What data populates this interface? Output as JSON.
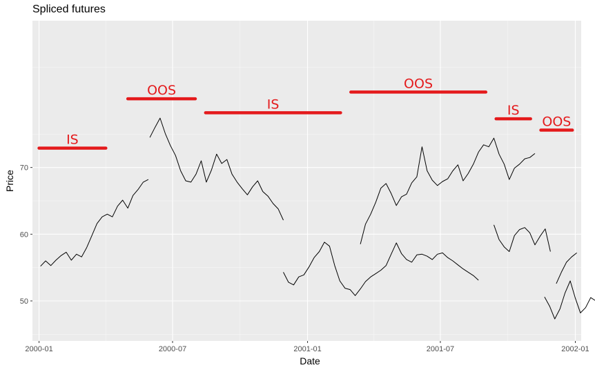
{
  "chart_data": {
    "type": "line",
    "title": "Spliced futures",
    "xlabel": "Date",
    "ylabel": "Price",
    "xlim": [
      "1999-12-23",
      "2002-01-09"
    ],
    "ylim": [
      44,
      92
    ],
    "x_ticks": [
      "2000-01",
      "2000-07",
      "2001-01",
      "2001-07",
      "2002-01"
    ],
    "y_ticks": [
      50,
      60,
      70
    ],
    "grid": true,
    "background": "#ebebeb",
    "line_color": "#000000",
    "annotation_color": "#e41a1c",
    "segments": [
      {
        "x": [
          "2000-01-03",
          "2000-01-10",
          "2000-01-17",
          "2000-01-24",
          "2000-01-31",
          "2000-02-07",
          "2000-02-14",
          "2000-02-21",
          "2000-02-28",
          "2000-03-06",
          "2000-03-13",
          "2000-03-20",
          "2000-03-27",
          "2000-04-03",
          "2000-04-10",
          "2000-04-17",
          "2000-04-24",
          "2000-05-01",
          "2000-05-08",
          "2000-05-15",
          "2000-05-22",
          "2000-05-29"
        ],
        "y": [
          55.2,
          56.0,
          55.3,
          56.1,
          56.8,
          57.3,
          56.1,
          57.0,
          56.6,
          58.0,
          59.8,
          61.6,
          62.6,
          63.0,
          62.6,
          64.2,
          65.1,
          63.9,
          65.8,
          66.7,
          67.8,
          68.2
        ]
      },
      {
        "x": [
          "2000-05-31",
          "2000-06-07",
          "2000-06-14",
          "2000-06-21",
          "2000-06-28",
          "2000-07-05",
          "2000-07-12",
          "2000-07-19",
          "2000-07-26",
          "2000-08-02",
          "2000-08-09",
          "2000-08-16",
          "2000-08-23",
          "2000-08-30",
          "2000-09-06",
          "2000-09-13",
          "2000-09-20",
          "2000-09-27",
          "2000-10-04",
          "2000-10-11",
          "2000-10-18",
          "2000-10-25",
          "2000-11-01",
          "2000-11-08",
          "2000-11-15",
          "2000-11-22",
          "2000-11-29"
        ],
        "y": [
          74.5,
          76.0,
          77.4,
          75.1,
          73.3,
          71.8,
          69.5,
          68.0,
          67.8,
          69.0,
          71.0,
          67.8,
          69.6,
          72.0,
          70.6,
          71.2,
          69.0,
          67.8,
          66.8,
          65.9,
          67.1,
          68.0,
          66.4,
          65.7,
          64.6,
          63.8,
          62.1
        ]
      },
      {
        "x": [
          "2000-11-29",
          "2000-12-06",
          "2000-12-13",
          "2000-12-20",
          "2000-12-27",
          "2001-01-03",
          "2001-01-10",
          "2001-01-17",
          "2001-01-24",
          "2001-01-31",
          "2001-02-07",
          "2001-02-14",
          "2001-02-21",
          "2001-02-28",
          "2001-03-07",
          "2001-03-14",
          "2001-03-21",
          "2001-03-28",
          "2001-04-04",
          "2001-04-11",
          "2001-04-18",
          "2001-04-25",
          "2001-05-02",
          "2001-05-09",
          "2001-05-16",
          "2001-05-23",
          "2001-05-30",
          "2001-06-06",
          "2001-06-13",
          "2001-06-20",
          "2001-06-27",
          "2001-07-04",
          "2001-07-11",
          "2001-07-18",
          "2001-07-25",
          "2001-08-01",
          "2001-08-08",
          "2001-08-15",
          "2001-08-22"
        ],
        "y": [
          54.3,
          52.8,
          52.4,
          53.6,
          53.9,
          55.1,
          56.5,
          57.4,
          58.8,
          58.2,
          55.3,
          53.0,
          51.9,
          51.7,
          50.8,
          51.8,
          52.9,
          53.6,
          54.1,
          54.6,
          55.3,
          57.0,
          58.7,
          57.1,
          56.2,
          55.8,
          56.9,
          57.0,
          56.7,
          56.2,
          57.0,
          57.2,
          56.5,
          56.0,
          55.4,
          54.8,
          54.3,
          53.8,
          53.1
        ]
      },
      {
        "x": [
          "2001-03-14",
          "2001-03-21",
          "2001-03-28",
          "2001-04-04",
          "2001-04-11",
          "2001-04-18",
          "2001-04-25",
          "2001-05-02",
          "2001-05-09",
          "2001-05-16",
          "2001-05-23",
          "2001-05-30",
          "2001-06-06",
          "2001-06-13",
          "2001-06-20",
          "2001-06-27",
          "2001-07-04",
          "2001-07-11",
          "2001-07-18",
          "2001-07-25",
          "2001-08-01",
          "2001-08-08",
          "2001-08-15",
          "2001-08-22",
          "2001-08-29",
          "2001-09-05",
          "2001-09-12",
          "2001-09-19",
          "2001-09-26",
          "2001-10-03",
          "2001-10-10",
          "2001-10-17",
          "2001-10-24",
          "2001-10-31",
          "2001-11-07"
        ],
        "y": [
          58.5,
          61.5,
          63.0,
          64.8,
          66.9,
          67.6,
          66.1,
          64.3,
          65.6,
          66.0,
          67.7,
          68.6,
          73.1,
          69.5,
          68.1,
          67.3,
          67.9,
          68.3,
          69.5,
          70.4,
          68.0,
          69.1,
          70.5,
          72.3,
          73.4,
          73.1,
          74.4,
          72.0,
          70.5,
          68.2,
          69.9,
          70.5,
          71.3,
          71.5,
          72.1
        ]
      },
      {
        "x": [
          "2001-09-12",
          "2001-09-19",
          "2001-09-26",
          "2001-10-03",
          "2001-10-10",
          "2001-10-17",
          "2001-10-24",
          "2001-10-31",
          "2001-11-07",
          "2001-11-14",
          "2001-11-21",
          "2001-11-28"
        ],
        "y": [
          61.4,
          59.2,
          58.1,
          57.4,
          59.8,
          60.7,
          61.0,
          60.2,
          58.4,
          59.7,
          60.8,
          57.4
        ]
      },
      {
        "x": [
          "2001-11-20",
          "2001-11-27",
          "2001-12-04",
          "2001-12-11",
          "2001-12-18",
          "2001-12-25",
          "2002-01-01",
          "2002-01-08",
          "2002-01-15",
          "2002-01-22",
          "2002-01-29",
          "2002-02-05",
          "2002-02-12",
          "2002-02-19"
        ],
        "y": [
          50.6,
          49.2,
          47.3,
          48.8,
          51.2,
          53.0,
          50.4,
          48.2,
          49.0,
          50.5,
          50.0,
          48.7,
          47.4,
          45.2
        ]
      },
      {
        "x": [
          "2001-12-06",
          "2001-12-13",
          "2001-12-20",
          "2001-12-27",
          "2002-01-03"
        ],
        "y": [
          52.6,
          54.3,
          55.8,
          56.6,
          57.2
        ]
      }
    ],
    "annotations": [
      {
        "label": "IS",
        "x_start": "2000-01-01",
        "x_end": "2000-04-01",
        "y": 72.9
      },
      {
        "label": "OOS",
        "x_start": "2000-05-01",
        "x_end": "2000-08-01",
        "y": 80.3
      },
      {
        "label": "IS",
        "x_start": "2000-08-15",
        "x_end": "2001-02-15",
        "y": 78.2
      },
      {
        "label": "OOS",
        "x_start": "2001-03-01",
        "x_end": "2001-09-01",
        "y": 81.3
      },
      {
        "label": "IS",
        "x_start": "2001-09-15",
        "x_end": "2001-11-01",
        "y": 77.3
      },
      {
        "label": "OOS",
        "x_start": "2001-11-15",
        "x_end": "2001-12-28",
        "y": 75.6
      }
    ]
  }
}
